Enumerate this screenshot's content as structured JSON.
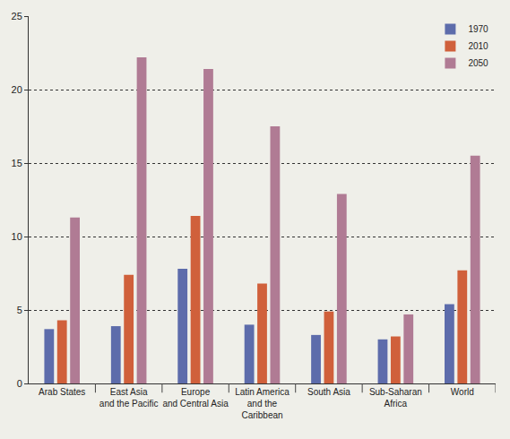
{
  "chart_data": {
    "type": "bar",
    "categories": [
      "Arab States",
      "East Asia\nand the Pacific",
      "Europe\nand Central Asia",
      "Latin America\nand the\nCaribbean",
      "South Asia",
      "Sub-Saharan\nAfrica",
      "World"
    ],
    "series": [
      {
        "name": "1970",
        "color": "#5d6cab",
        "values": [
          3.7,
          3.9,
          7.8,
          4.0,
          3.3,
          3.0,
          5.4
        ]
      },
      {
        "name": "2010",
        "color": "#d0603b",
        "values": [
          4.3,
          7.4,
          11.4,
          6.8,
          4.9,
          3.2,
          7.7
        ]
      },
      {
        "name": "2050",
        "color": "#b07b94",
        "values": [
          11.3,
          22.2,
          21.4,
          17.5,
          12.9,
          4.7,
          15.5
        ]
      }
    ],
    "ylim": [
      0,
      25
    ],
    "yticks": [
      0,
      5,
      10,
      15,
      20,
      25
    ],
    "grid": true,
    "legend": "top right"
  }
}
